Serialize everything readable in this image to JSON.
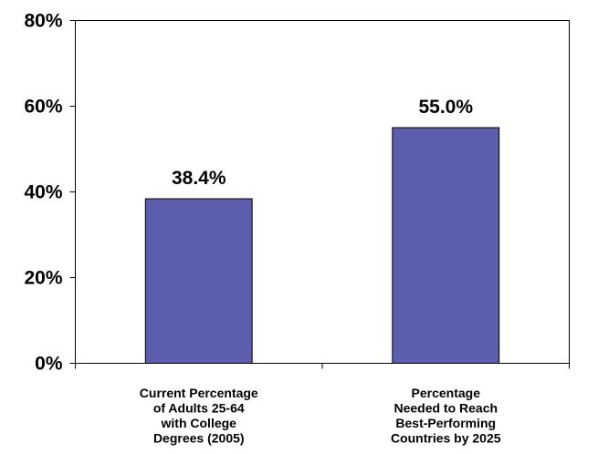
{
  "chart_data": {
    "type": "bar",
    "categories": [
      [
        "Current Percentage",
        "of Adults 25-64",
        "with College",
        "Degrees (2005)"
      ],
      [
        "Percentage",
        "Needed to Reach",
        "Best-Performing",
        "Countries by 2025"
      ]
    ],
    "values": [
      38.4,
      55.0
    ],
    "data_labels": [
      "38.4%",
      "55.0%"
    ],
    "ylim": [
      0,
      80
    ],
    "yticks": [
      0,
      20,
      40,
      60,
      80
    ],
    "ytick_labels": [
      "0%",
      "20%",
      "40%",
      "60%",
      "80%"
    ],
    "title": "",
    "xlabel": "",
    "ylabel": "",
    "grid": false,
    "legend": "none",
    "bar_color": "#5B5EAD"
  }
}
